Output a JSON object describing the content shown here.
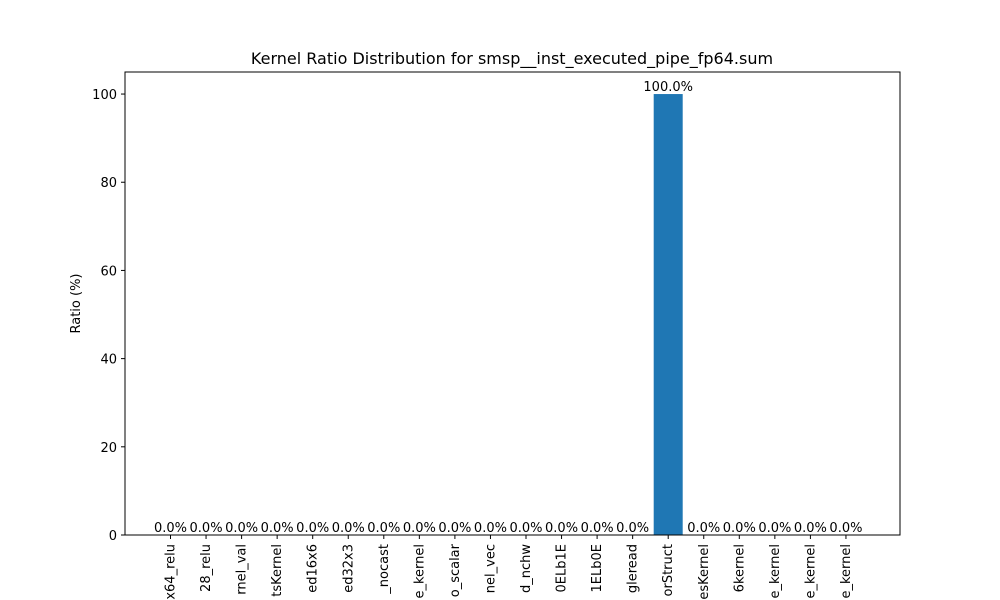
{
  "chart_data": {
    "type": "bar",
    "title": "Kernel Ratio Distribution for smsp__inst_executed_pipe_fp64.sum",
    "xlabel": "",
    "ylabel": "Ratio (%)",
    "ylim": [
      0,
      105
    ],
    "yticks": [
      0,
      20,
      40,
      60,
      80,
      100
    ],
    "grid": false,
    "bar_color": "#1f77b4",
    "categories": [
      "x64_relu",
      "28_relu",
      "rnel_val",
      "tsKernel",
      "ed16x6",
      "ed32x3",
      "_nocast",
      "e_kernel",
      "o_scalar",
      "nel_vec",
      "d_nchw",
      "0ELb1E",
      "1ELb0E",
      "gleread",
      "orStruct",
      "esKernel",
      "6kernel",
      "e_kernel",
      "e_kernel",
      "e_kernel"
    ],
    "values": [
      0,
      0,
      0,
      0,
      0,
      0,
      0,
      0,
      0,
      0,
      0,
      0,
      0,
      0,
      100,
      0,
      0,
      0,
      0,
      0
    ],
    "value_labels": [
      "0.0%",
      "0.0%",
      "0.0%",
      "0.0%",
      "0.0%",
      "0.0%",
      "0.0%",
      "0.0%",
      "0.0%",
      "0.0%",
      "0.0%",
      "0.0%",
      "0.0%",
      "0.0%",
      "100.0%",
      "0.0%",
      "0.0%",
      "0.0%",
      "0.0%",
      "0.0%"
    ]
  }
}
